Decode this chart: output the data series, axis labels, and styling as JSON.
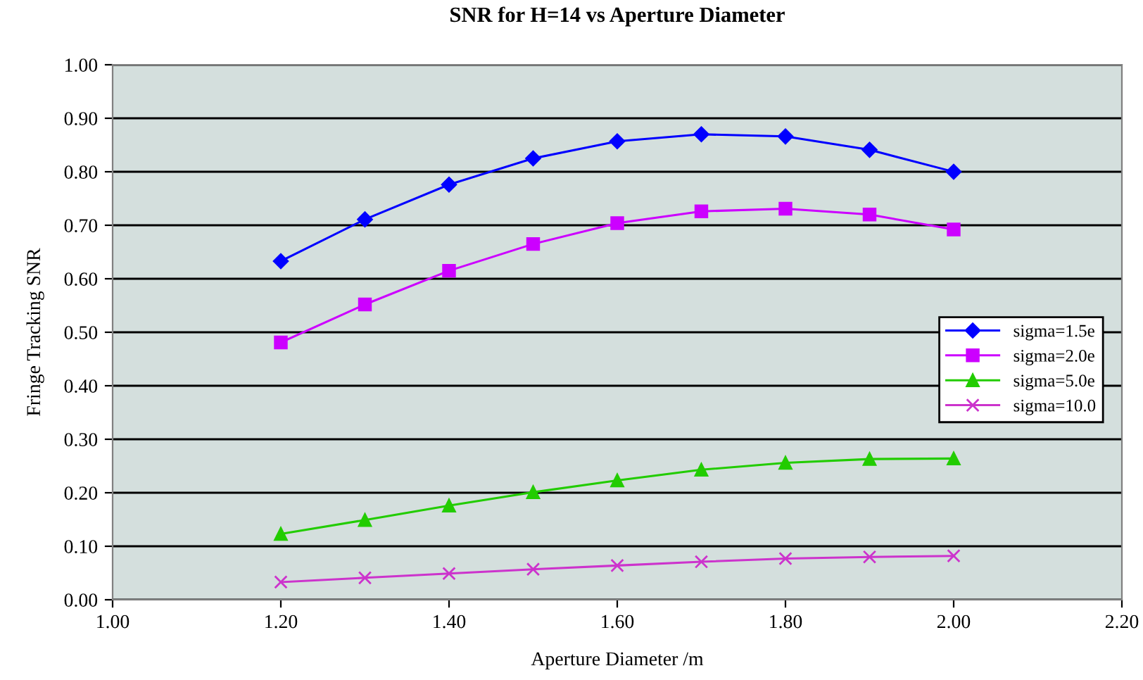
{
  "chart_data": {
    "type": "line",
    "title": "SNR for H=14 vs Aperture Diameter",
    "xlabel": "Aperture Diameter /m",
    "ylabel": "Fringe Tracking SNR",
    "x": [
      1.2,
      1.3,
      1.4,
      1.5,
      1.6,
      1.7,
      1.8,
      1.9,
      2.0
    ],
    "series": [
      {
        "name": "sigma=1.5e",
        "color": "#0000ff",
        "marker": "diamond",
        "values": [
          0.633,
          0.711,
          0.776,
          0.825,
          0.857,
          0.87,
          0.866,
          0.841,
          0.8
        ]
      },
      {
        "name": "sigma=2.0e",
        "color": "#cc00ff",
        "marker": "square",
        "values": [
          0.481,
          0.552,
          0.615,
          0.665,
          0.704,
          0.726,
          0.731,
          0.72,
          0.692
        ]
      },
      {
        "name": "sigma=5.0e",
        "color": "#22cc00",
        "marker": "triangle",
        "values": [
          0.123,
          0.149,
          0.176,
          0.201,
          0.223,
          0.243,
          0.256,
          0.263,
          0.264
        ]
      },
      {
        "name": "sigma=10.0",
        "color": "#cc33cc",
        "marker": "cross",
        "values": [
          0.033,
          0.041,
          0.049,
          0.057,
          0.064,
          0.071,
          0.077,
          0.08,
          0.082
        ]
      }
    ],
    "xlim": [
      1.0,
      2.2
    ],
    "xticks": [
      {
        "value": 1.0,
        "label": "1.00"
      },
      {
        "value": 1.2,
        "label": "1.20"
      },
      {
        "value": 1.4,
        "label": "1.40"
      },
      {
        "value": 1.6,
        "label": "1.60"
      },
      {
        "value": 1.8,
        "label": "1.80"
      },
      {
        "value": 2.0,
        "label": "2.00"
      },
      {
        "value": 2.2,
        "label": "2.20"
      }
    ],
    "ylim": [
      0,
      1.0
    ],
    "yticks": [
      {
        "value": 0,
        "label": "0.00"
      },
      {
        "value": 0.1,
        "label": "0.10"
      },
      {
        "value": 0.2,
        "label": "0.20"
      },
      {
        "value": 0.3,
        "label": "0.30"
      },
      {
        "value": 0.4,
        "label": "0.40"
      },
      {
        "value": 0.5,
        "label": "0.50"
      },
      {
        "value": 0.6,
        "label": "0.60"
      },
      {
        "value": 0.7,
        "label": "0.70"
      },
      {
        "value": 0.8,
        "label": "0.80"
      },
      {
        "value": 0.9,
        "label": "0.90"
      },
      {
        "value": 1.0,
        "label": "1.00"
      }
    ],
    "grid": "y",
    "legend": "right",
    "line_style": "solid"
  }
}
